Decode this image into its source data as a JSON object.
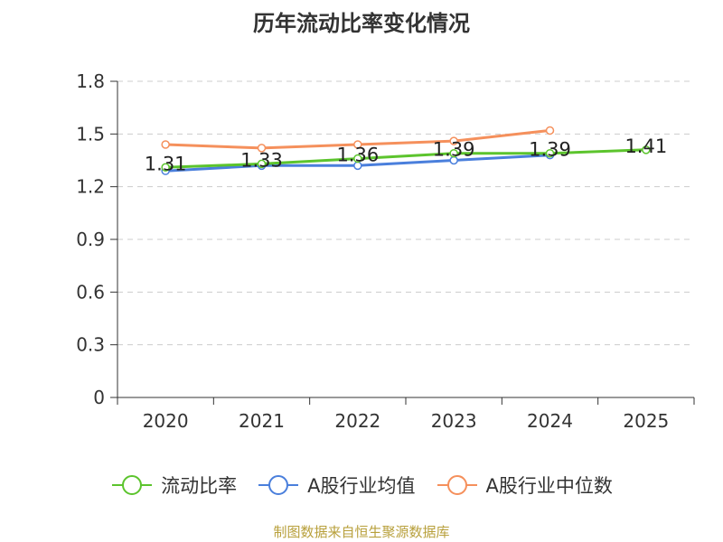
{
  "chart_data": {
    "type": "line",
    "title": "历年流动比率变化情况",
    "categories": [
      "2020",
      "2021",
      "2022",
      "2023",
      "2024",
      "2025"
    ],
    "ylim": [
      0,
      1.8
    ],
    "yticks": [
      "0",
      "0.3",
      "0.6",
      "0.9",
      "1.2",
      "1.5",
      "1.8"
    ],
    "grid": true,
    "legend_position": "bottom",
    "series": [
      {
        "name": "流动比率",
        "color": "#5cc42d",
        "values": [
          1.31,
          1.33,
          1.36,
          1.39,
          1.39,
          1.41
        ],
        "labels": [
          "1.31",
          "1.33",
          "1.36",
          "1.39",
          "1.39",
          "1.41"
        ]
      },
      {
        "name": "A股行业均值",
        "color": "#4a7fdc",
        "values": [
          1.29,
          1.32,
          1.32,
          1.35,
          1.38,
          null
        ]
      },
      {
        "name": "A股行业中位数",
        "color": "#f5905c",
        "values": [
          1.44,
          1.42,
          1.44,
          1.46,
          1.52,
          null
        ]
      }
    ]
  },
  "footer": {
    "source": "制图数据来自恒生聚源数据库"
  }
}
